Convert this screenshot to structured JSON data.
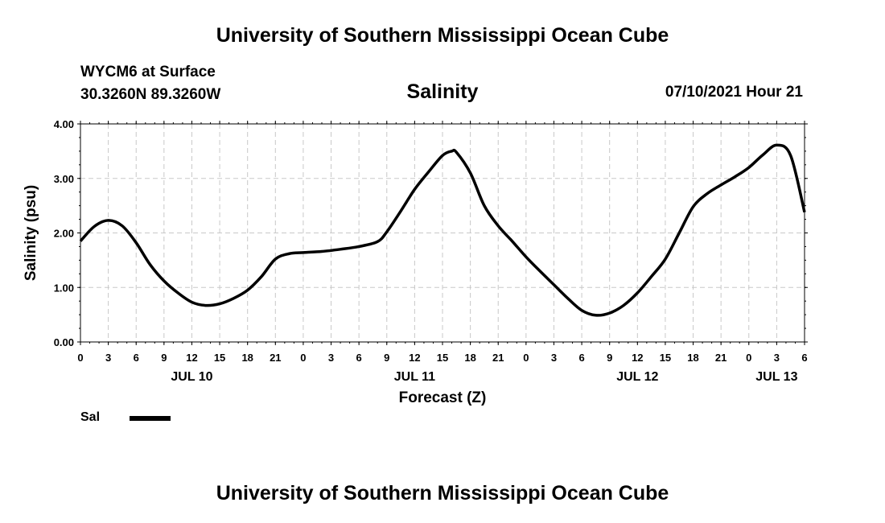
{
  "header": {
    "title": "University of Southern Mississippi Ocean Cube",
    "station": "WYCM6 at Surface",
    "coords": "30.3260N  89.3260W",
    "parameter": "Salinity",
    "datetime": "07/10/2021 Hour 21"
  },
  "footer": {
    "title": "University of Southern Mississippi Ocean Cube"
  },
  "legend": {
    "label": "Sal"
  },
  "chart_data": {
    "type": "line",
    "title": "Salinity",
    "xlabel": "Forecast (Z)",
    "ylabel": "Salinity (psu)",
    "ylim": [
      0,
      4
    ],
    "xlim": [
      0,
      78
    ],
    "grid": true,
    "legend_position": "bottom-left",
    "y_ticks": [
      "0.00",
      "1.00",
      "2.00",
      "3.00",
      "4.00"
    ],
    "x_tick_labels": [
      "0",
      "3",
      "6",
      "9",
      "12",
      "15",
      "18",
      "21",
      "0",
      "3",
      "6",
      "9",
      "12",
      "15",
      "18",
      "21",
      "0",
      "3",
      "6",
      "9",
      "12",
      "15",
      "18",
      "21",
      "0",
      "3",
      "6"
    ],
    "date_labels": [
      {
        "label": "JUL 10",
        "hour": 12
      },
      {
        "label": "JUL 11",
        "hour": 36
      },
      {
        "label": "JUL 12",
        "hour": 60
      },
      {
        "label": "JUL 13",
        "hour": 75
      }
    ],
    "series": [
      {
        "name": "Sal",
        "color": "#000000",
        "x": [
          0,
          1.5,
          3,
          4.5,
          6,
          7.5,
          9,
          10.5,
          12,
          13.5,
          15,
          16.5,
          18,
          19.5,
          21,
          22.5,
          24,
          26,
          28,
          30,
          32,
          33,
          34.5,
          36,
          37.5,
          39,
          40,
          40.5,
          42,
          43.5,
          45,
          46.5,
          48,
          49.5,
          51,
          52.5,
          54,
          55.5,
          57,
          58.5,
          60,
          61.5,
          63,
          64.5,
          66,
          67.5,
          69,
          70.5,
          72,
          73.5,
          75,
          76.5,
          78
        ],
        "y": [
          1.85,
          2.12,
          2.23,
          2.13,
          1.82,
          1.42,
          1.12,
          0.9,
          0.73,
          0.67,
          0.7,
          0.8,
          0.95,
          1.2,
          1.52,
          1.62,
          1.64,
          1.66,
          1.7,
          1.75,
          1.84,
          2.02,
          2.4,
          2.8,
          3.12,
          3.42,
          3.5,
          3.48,
          3.1,
          2.5,
          2.13,
          1.85,
          1.56,
          1.3,
          1.05,
          0.8,
          0.58,
          0.49,
          0.53,
          0.67,
          0.9,
          1.2,
          1.52,
          2.0,
          2.48,
          2.72,
          2.88,
          3.03,
          3.2,
          3.43,
          3.61,
          3.42,
          2.38
        ]
      }
    ]
  }
}
